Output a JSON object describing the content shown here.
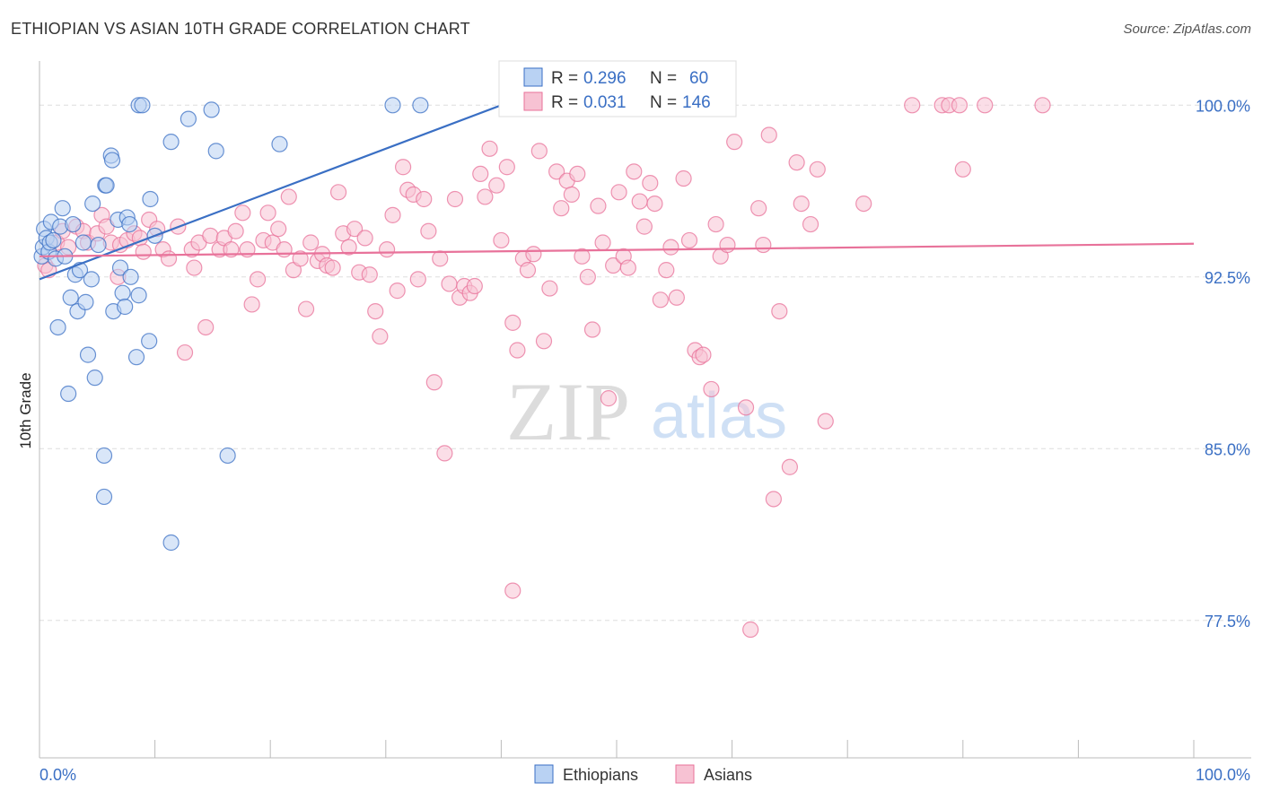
{
  "title": "ETHIOPIAN VS ASIAN 10TH GRADE CORRELATION CHART",
  "source": "Source: ZipAtlas.com",
  "watermark": {
    "zip": "ZIP",
    "atlas": "atlas"
  },
  "colors": {
    "blue": "#3a6fc4",
    "blue_fill": "#b9d2f3",
    "pink": "#e8729a",
    "pink_fill": "#f7c2d3",
    "grid": "#dddddd"
  },
  "legend": {
    "r_label": "R =",
    "n_label": "N =",
    "rows": [
      {
        "series": "Ethiopians",
        "r": "0.296",
        "n": "60"
      },
      {
        "series": "Asians",
        "r": "0.031",
        "n": "146"
      }
    ]
  },
  "chart_data": {
    "type": "scatter",
    "title": "ETHIOPIAN VS ASIAN 10TH GRADE CORRELATION CHART",
    "xlabel": "",
    "ylabel": "10th Grade",
    "xlim": [
      0,
      100
    ],
    "ylim": [
      71.5,
      101.5
    ],
    "x_tick_labels": [
      "0.0%",
      "100.0%"
    ],
    "y_ticks": [
      {
        "value": 100.0,
        "label": "100.0%"
      },
      {
        "value": 92.5,
        "label": "92.5%"
      },
      {
        "value": 85.0,
        "label": "85.0%"
      },
      {
        "value": 77.5,
        "label": "77.5%"
      }
    ],
    "grid": true,
    "legend_position": "top-center",
    "series": [
      {
        "name": "Ethiopians",
        "color": "#3a6fc4",
        "trend": {
          "x": [
            0,
            40
          ],
          "y": [
            92.4,
            100.0
          ]
        },
        "points": [
          [
            0.2,
            93.4
          ],
          [
            0.3,
            93.8
          ],
          [
            0.4,
            94.6
          ],
          [
            0.6,
            94.2
          ],
          [
            0.8,
            93.6
          ],
          [
            0.9,
            94.0
          ],
          [
            1.0,
            94.9
          ],
          [
            1.2,
            94.1
          ],
          [
            1.4,
            93.3
          ],
          [
            1.6,
            90.3
          ],
          [
            1.8,
            94.7
          ],
          [
            2.0,
            95.5
          ],
          [
            2.2,
            93.4
          ],
          [
            2.5,
            87.4
          ],
          [
            2.7,
            91.6
          ],
          [
            2.9,
            94.8
          ],
          [
            3.1,
            92.6
          ],
          [
            3.3,
            91.0
          ],
          [
            3.5,
            92.8
          ],
          [
            3.8,
            94.0
          ],
          [
            4.0,
            91.4
          ],
          [
            4.2,
            89.1
          ],
          [
            4.5,
            92.4
          ],
          [
            4.6,
            95.7
          ],
          [
            4.8,
            88.1
          ],
          [
            5.1,
            93.9
          ],
          [
            5.6,
            84.7
          ],
          [
            5.6,
            82.9
          ],
          [
            5.7,
            96.5
          ],
          [
            5.8,
            96.5
          ],
          [
            6.2,
            97.8
          ],
          [
            6.3,
            97.6
          ],
          [
            6.4,
            91.0
          ],
          [
            6.8,
            95.0
          ],
          [
            7.0,
            92.9
          ],
          [
            7.2,
            91.8
          ],
          [
            7.4,
            91.2
          ],
          [
            7.6,
            95.1
          ],
          [
            7.8,
            94.8
          ],
          [
            7.9,
            92.5
          ],
          [
            8.4,
            89.0
          ],
          [
            8.6,
            91.7
          ],
          [
            8.6,
            100.0
          ],
          [
            8.9,
            100.0
          ],
          [
            9.5,
            89.7
          ],
          [
            9.6,
            95.9
          ],
          [
            10.0,
            94.3
          ],
          [
            11.4,
            80.9
          ],
          [
            11.4,
            98.4
          ],
          [
            12.9,
            99.4
          ],
          [
            14.9,
            99.8
          ],
          [
            15.3,
            98.0
          ],
          [
            16.3,
            84.7
          ],
          [
            20.8,
            98.3
          ],
          [
            30.6,
            100.0
          ],
          [
            33.0,
            100.0
          ]
        ]
      },
      {
        "name": "Asians",
        "color": "#e8729a",
        "trend": {
          "x": [
            0,
            100
          ],
          "y": [
            93.4,
            93.95
          ]
        },
        "points": [
          [
            0.5,
            93.0
          ],
          [
            0.8,
            92.8
          ],
          [
            1.5,
            94.0
          ],
          [
            2.0,
            94.5
          ],
          [
            2.5,
            93.8
          ],
          [
            3.2,
            94.7
          ],
          [
            3.8,
            94.5
          ],
          [
            4.2,
            94.0
          ],
          [
            5.0,
            94.4
          ],
          [
            5.4,
            95.2
          ],
          [
            5.8,
            94.7
          ],
          [
            6.2,
            94.0
          ],
          [
            6.8,
            92.5
          ],
          [
            7.0,
            93.9
          ],
          [
            7.6,
            94.1
          ],
          [
            8.2,
            94.4
          ],
          [
            8.7,
            94.2
          ],
          [
            9.0,
            93.6
          ],
          [
            9.5,
            95.0
          ],
          [
            10.2,
            94.6
          ],
          [
            10.7,
            93.7
          ],
          [
            11.2,
            93.3
          ],
          [
            12.0,
            94.7
          ],
          [
            12.6,
            89.2
          ],
          [
            13.2,
            93.7
          ],
          [
            13.4,
            92.9
          ],
          [
            13.8,
            94.0
          ],
          [
            14.4,
            90.3
          ],
          [
            14.8,
            94.3
          ],
          [
            15.6,
            93.7
          ],
          [
            16.0,
            94.2
          ],
          [
            16.6,
            93.7
          ],
          [
            17.0,
            94.5
          ],
          [
            17.6,
            95.3
          ],
          [
            18.0,
            93.7
          ],
          [
            18.4,
            91.3
          ],
          [
            18.9,
            92.4
          ],
          [
            19.4,
            94.1
          ],
          [
            19.8,
            95.3
          ],
          [
            20.2,
            94.0
          ],
          [
            20.7,
            94.6
          ],
          [
            21.2,
            93.7
          ],
          [
            21.6,
            96.0
          ],
          [
            22.0,
            92.8
          ],
          [
            22.6,
            93.3
          ],
          [
            23.1,
            91.1
          ],
          [
            23.5,
            94.0
          ],
          [
            24.1,
            93.2
          ],
          [
            24.5,
            93.5
          ],
          [
            24.9,
            93.0
          ],
          [
            25.4,
            92.9
          ],
          [
            25.9,
            96.2
          ],
          [
            26.3,
            94.4
          ],
          [
            26.8,
            93.8
          ],
          [
            27.3,
            94.6
          ],
          [
            27.7,
            92.7
          ],
          [
            28.2,
            94.2
          ],
          [
            28.6,
            92.6
          ],
          [
            29.1,
            91.0
          ],
          [
            29.5,
            89.9
          ],
          [
            30.1,
            93.7
          ],
          [
            30.6,
            95.2
          ],
          [
            31.0,
            91.9
          ],
          [
            31.5,
            97.3
          ],
          [
            31.9,
            96.3
          ],
          [
            32.4,
            96.1
          ],
          [
            32.8,
            92.4
          ],
          [
            33.3,
            95.9
          ],
          [
            33.7,
            94.5
          ],
          [
            34.2,
            87.9
          ],
          [
            34.7,
            93.3
          ],
          [
            35.1,
            84.8
          ],
          [
            35.5,
            92.2
          ],
          [
            36.0,
            95.9
          ],
          [
            36.4,
            91.6
          ],
          [
            36.8,
            92.1
          ],
          [
            37.3,
            91.8
          ],
          [
            37.7,
            92.1
          ],
          [
            38.2,
            97.0
          ],
          [
            38.6,
            96.0
          ],
          [
            39.0,
            98.1
          ],
          [
            39.6,
            96.5
          ],
          [
            40.0,
            94.1
          ],
          [
            40.5,
            97.3
          ],
          [
            41.0,
            90.5
          ],
          [
            41.4,
            89.3
          ],
          [
            41.9,
            93.3
          ],
          [
            42.3,
            92.8
          ],
          [
            42.8,
            93.5
          ],
          [
            43.3,
            98.0
          ],
          [
            43.7,
            89.7
          ],
          [
            44.2,
            92.0
          ],
          [
            44.8,
            97.1
          ],
          [
            45.2,
            95.5
          ],
          [
            45.7,
            96.7
          ],
          [
            46.1,
            96.1
          ],
          [
            46.6,
            97.0
          ],
          [
            47.0,
            93.4
          ],
          [
            47.5,
            92.5
          ],
          [
            47.9,
            90.2
          ],
          [
            48.4,
            95.6
          ],
          [
            48.8,
            94.0
          ],
          [
            49.3,
            87.2
          ],
          [
            49.7,
            93.0
          ],
          [
            50.2,
            96.2
          ],
          [
            50.6,
            93.4
          ],
          [
            51.0,
            92.9
          ],
          [
            51.5,
            97.1
          ],
          [
            52.0,
            95.8
          ],
          [
            52.4,
            94.7
          ],
          [
            52.9,
            96.6
          ],
          [
            53.3,
            95.7
          ],
          [
            53.8,
            91.5
          ],
          [
            54.3,
            92.8
          ],
          [
            54.7,
            93.8
          ],
          [
            55.2,
            91.6
          ],
          [
            55.8,
            96.8
          ],
          [
            56.3,
            94.1
          ],
          [
            56.8,
            89.3
          ],
          [
            57.2,
            89.0
          ],
          [
            57.5,
            89.1
          ],
          [
            58.2,
            87.6
          ],
          [
            58.6,
            94.8
          ],
          [
            59.0,
            93.4
          ],
          [
            59.6,
            93.9
          ],
          [
            60.2,
            98.4
          ],
          [
            61.2,
            86.8
          ],
          [
            61.6,
            77.1
          ],
          [
            62.3,
            95.5
          ],
          [
            62.7,
            93.9
          ],
          [
            63.2,
            98.7
          ],
          [
            63.6,
            82.8
          ],
          [
            64.1,
            91.0
          ],
          [
            65.0,
            84.2
          ],
          [
            65.6,
            97.5
          ],
          [
            66.0,
            95.7
          ],
          [
            66.8,
            94.8
          ],
          [
            67.4,
            97.2
          ],
          [
            68.1,
            86.2
          ],
          [
            71.4,
            95.7
          ],
          [
            75.6,
            100.0
          ],
          [
            78.2,
            100.0
          ],
          [
            78.8,
            100.0
          ],
          [
            79.7,
            100.0
          ],
          [
            80.0,
            97.2
          ],
          [
            81.9,
            100.0
          ],
          [
            86.9,
            100.0
          ],
          [
            41.0,
            78.8
          ]
        ]
      }
    ]
  }
}
